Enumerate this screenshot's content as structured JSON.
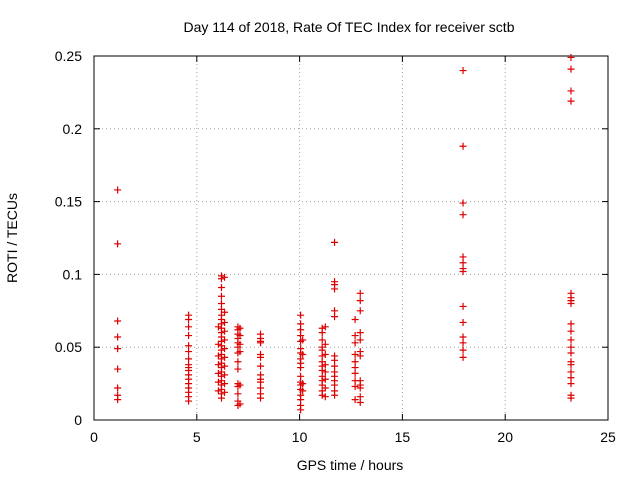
{
  "chart_data": {
    "type": "scatter",
    "title": "Day 114 of 2018, Rate Of TEC Index for receiver sctb",
    "xlabel": "GPS time / hours",
    "ylabel": "ROTI / TECUs",
    "xlim": [
      0,
      25
    ],
    "ylim": [
      0,
      0.25
    ],
    "xticks": [
      0,
      5,
      10,
      15,
      20,
      25
    ],
    "xtick_labels": [
      "0",
      "5",
      "10",
      "15",
      "20",
      "25"
    ],
    "yticks": [
      0,
      0.05,
      0.1,
      0.15,
      0.2,
      0.25
    ],
    "ytick_labels": [
      "0",
      "0.05",
      "0.1",
      "0.15",
      "0.2",
      "0.25"
    ],
    "grid": true,
    "marker": "+",
    "color": "#dd0000",
    "series": [
      {
        "name": "ROTI",
        "points": [
          [
            1.15,
            0.158
          ],
          [
            1.15,
            0.121
          ],
          [
            1.15,
            0.068
          ],
          [
            1.15,
            0.057
          ],
          [
            1.15,
            0.049
          ],
          [
            1.15,
            0.035
          ],
          [
            1.15,
            0.022
          ],
          [
            1.15,
            0.017
          ],
          [
            1.15,
            0.014
          ],
          [
            4.6,
            0.072
          ],
          [
            4.6,
            0.069
          ],
          [
            4.6,
            0.064
          ],
          [
            4.6,
            0.058
          ],
          [
            4.6,
            0.051
          ],
          [
            4.6,
            0.047
          ],
          [
            4.6,
            0.042
          ],
          [
            4.6,
            0.038
          ],
          [
            4.6,
            0.036
          ],
          [
            4.6,
            0.034
          ],
          [
            4.6,
            0.031
          ],
          [
            4.6,
            0.028
          ],
          [
            4.6,
            0.025
          ],
          [
            4.6,
            0.022
          ],
          [
            4.6,
            0.019
          ],
          [
            4.6,
            0.016
          ],
          [
            4.6,
            0.013
          ],
          [
            6.2,
            0.099
          ],
          [
            6.2,
            0.097
          ],
          [
            6.2,
            0.091
          ],
          [
            6.2,
            0.085
          ],
          [
            6.2,
            0.08
          ],
          [
            6.2,
            0.076
          ],
          [
            6.2,
            0.072
          ],
          [
            6.2,
            0.069
          ],
          [
            6.2,
            0.066
          ],
          [
            6.2,
            0.063
          ],
          [
            6.2,
            0.06
          ],
          [
            6.2,
            0.057
          ],
          [
            6.2,
            0.054
          ],
          [
            6.2,
            0.051
          ],
          [
            6.2,
            0.048
          ],
          [
            6.2,
            0.045
          ],
          [
            6.2,
            0.042
          ],
          [
            6.2,
            0.039
          ],
          [
            6.2,
            0.036
          ],
          [
            6.2,
            0.033
          ],
          [
            6.2,
            0.03
          ],
          [
            6.2,
            0.027
          ],
          [
            6.2,
            0.024
          ],
          [
            6.2,
            0.021
          ],
          [
            6.2,
            0.018
          ],
          [
            6.2,
            0.015
          ],
          [
            6.35,
            0.098
          ],
          [
            6.35,
            0.074
          ],
          [
            6.35,
            0.067
          ],
          [
            6.35,
            0.061
          ],
          [
            6.35,
            0.055
          ],
          [
            6.35,
            0.049
          ],
          [
            6.35,
            0.043
          ],
          [
            6.35,
            0.037
          ],
          [
            6.35,
            0.031
          ],
          [
            6.35,
            0.025
          ],
          [
            6.35,
            0.019
          ],
          [
            6.05,
            0.064
          ],
          [
            6.05,
            0.052
          ],
          [
            6.05,
            0.044
          ],
          [
            6.05,
            0.038
          ],
          [
            6.05,
            0.032
          ],
          [
            6.05,
            0.026
          ],
          [
            6.05,
            0.02
          ],
          [
            7.0,
            0.064
          ],
          [
            7.0,
            0.062
          ],
          [
            7.0,
            0.059
          ],
          [
            7.0,
            0.056
          ],
          [
            7.0,
            0.053
          ],
          [
            7.0,
            0.05
          ],
          [
            7.0,
            0.046
          ],
          [
            7.0,
            0.04
          ],
          [
            7.0,
            0.035
          ],
          [
            7.0,
            0.025
          ],
          [
            7.0,
            0.023
          ],
          [
            7.0,
            0.018
          ],
          [
            7.0,
            0.013
          ],
          [
            7.0,
            0.01
          ],
          [
            7.1,
            0.063
          ],
          [
            7.1,
            0.058
          ],
          [
            7.1,
            0.052
          ],
          [
            7.1,
            0.047
          ],
          [
            7.1,
            0.024
          ],
          [
            7.1,
            0.011
          ],
          [
            8.1,
            0.059
          ],
          [
            8.1,
            0.056
          ],
          [
            8.1,
            0.054
          ],
          [
            8.1,
            0.053
          ],
          [
            8.1,
            0.045
          ],
          [
            8.1,
            0.043
          ],
          [
            8.1,
            0.037
          ],
          [
            8.1,
            0.031
          ],
          [
            8.1,
            0.028
          ],
          [
            8.1,
            0.026
          ],
          [
            8.1,
            0.022
          ],
          [
            8.1,
            0.018
          ],
          [
            8.1,
            0.015
          ],
          [
            10.05,
            0.072
          ],
          [
            10.05,
            0.066
          ],
          [
            10.05,
            0.062
          ],
          [
            10.05,
            0.058
          ],
          [
            10.05,
            0.054
          ],
          [
            10.05,
            0.049
          ],
          [
            10.05,
            0.046
          ],
          [
            10.05,
            0.042
          ],
          [
            10.05,
            0.039
          ],
          [
            10.05,
            0.036
          ],
          [
            10.05,
            0.03
          ],
          [
            10.05,
            0.026
          ],
          [
            10.05,
            0.024
          ],
          [
            10.05,
            0.021
          ],
          [
            10.05,
            0.017
          ],
          [
            10.05,
            0.014
          ],
          [
            10.05,
            0.01
          ],
          [
            10.05,
            0.007
          ],
          [
            10.15,
            0.055
          ],
          [
            10.15,
            0.045
          ],
          [
            10.15,
            0.025
          ],
          [
            10.15,
            0.02
          ],
          [
            11.1,
            0.063
          ],
          [
            11.1,
            0.06
          ],
          [
            11.1,
            0.055
          ],
          [
            11.1,
            0.05
          ],
          [
            11.1,
            0.048
          ],
          [
            11.1,
            0.044
          ],
          [
            11.1,
            0.04
          ],
          [
            11.1,
            0.037
          ],
          [
            11.1,
            0.034
          ],
          [
            11.1,
            0.03
          ],
          [
            11.1,
            0.027
          ],
          [
            11.1,
            0.024
          ],
          [
            11.1,
            0.02
          ],
          [
            11.1,
            0.017
          ],
          [
            11.25,
            0.064
          ],
          [
            11.25,
            0.052
          ],
          [
            11.25,
            0.045
          ],
          [
            11.25,
            0.038
          ],
          [
            11.25,
            0.033
          ],
          [
            11.25,
            0.028
          ],
          [
            11.25,
            0.022
          ],
          [
            11.25,
            0.016
          ],
          [
            11.7,
            0.122
          ],
          [
            11.7,
            0.095
          ],
          [
            11.7,
            0.093
          ],
          [
            11.7,
            0.09
          ],
          [
            11.7,
            0.075
          ],
          [
            11.7,
            0.071
          ],
          [
            11.7,
            0.044
          ],
          [
            11.7,
            0.041
          ],
          [
            11.7,
            0.037
          ],
          [
            11.7,
            0.033
          ],
          [
            11.7,
            0.03
          ],
          [
            11.7,
            0.027
          ],
          [
            11.7,
            0.024
          ],
          [
            11.7,
            0.02
          ],
          [
            11.7,
            0.017
          ],
          [
            12.7,
            0.069
          ],
          [
            12.7,
            0.058
          ],
          [
            12.7,
            0.053
          ],
          [
            12.7,
            0.045
          ],
          [
            12.7,
            0.04
          ],
          [
            12.7,
            0.036
          ],
          [
            12.7,
            0.032
          ],
          [
            12.7,
            0.027
          ],
          [
            12.7,
            0.023
          ],
          [
            12.7,
            0.014
          ],
          [
            12.95,
            0.087
          ],
          [
            12.95,
            0.082
          ],
          [
            12.95,
            0.075
          ],
          [
            12.95,
            0.06
          ],
          [
            12.95,
            0.055
          ],
          [
            12.95,
            0.047
          ],
          [
            12.95,
            0.044
          ],
          [
            12.95,
            0.027
          ],
          [
            12.95,
            0.024
          ],
          [
            12.95,
            0.022
          ],
          [
            12.95,
            0.016
          ],
          [
            12.95,
            0.012
          ],
          [
            17.95,
            0.24
          ],
          [
            17.95,
            0.188
          ],
          [
            17.95,
            0.149
          ],
          [
            17.95,
            0.141
          ],
          [
            17.95,
            0.112
          ],
          [
            17.95,
            0.108
          ],
          [
            17.95,
            0.104
          ],
          [
            17.95,
            0.102
          ],
          [
            17.95,
            0.078
          ],
          [
            17.95,
            0.067
          ],
          [
            17.95,
            0.057
          ],
          [
            17.95,
            0.053
          ],
          [
            17.95,
            0.048
          ],
          [
            17.95,
            0.043
          ],
          [
            23.2,
            0.249
          ],
          [
            23.2,
            0.241
          ],
          [
            23.2,
            0.226
          ],
          [
            23.2,
            0.219
          ],
          [
            23.2,
            0.087
          ],
          [
            23.2,
            0.084
          ],
          [
            23.2,
            0.082
          ],
          [
            23.2,
            0.08
          ],
          [
            23.2,
            0.066
          ],
          [
            23.2,
            0.061
          ],
          [
            23.2,
            0.055
          ],
          [
            23.2,
            0.05
          ],
          [
            23.2,
            0.046
          ],
          [
            23.2,
            0.04
          ],
          [
            23.2,
            0.038
          ],
          [
            23.2,
            0.033
          ],
          [
            23.2,
            0.029
          ],
          [
            23.2,
            0.025
          ],
          [
            23.2,
            0.017
          ],
          [
            23.2,
            0.015
          ]
        ]
      }
    ]
  }
}
